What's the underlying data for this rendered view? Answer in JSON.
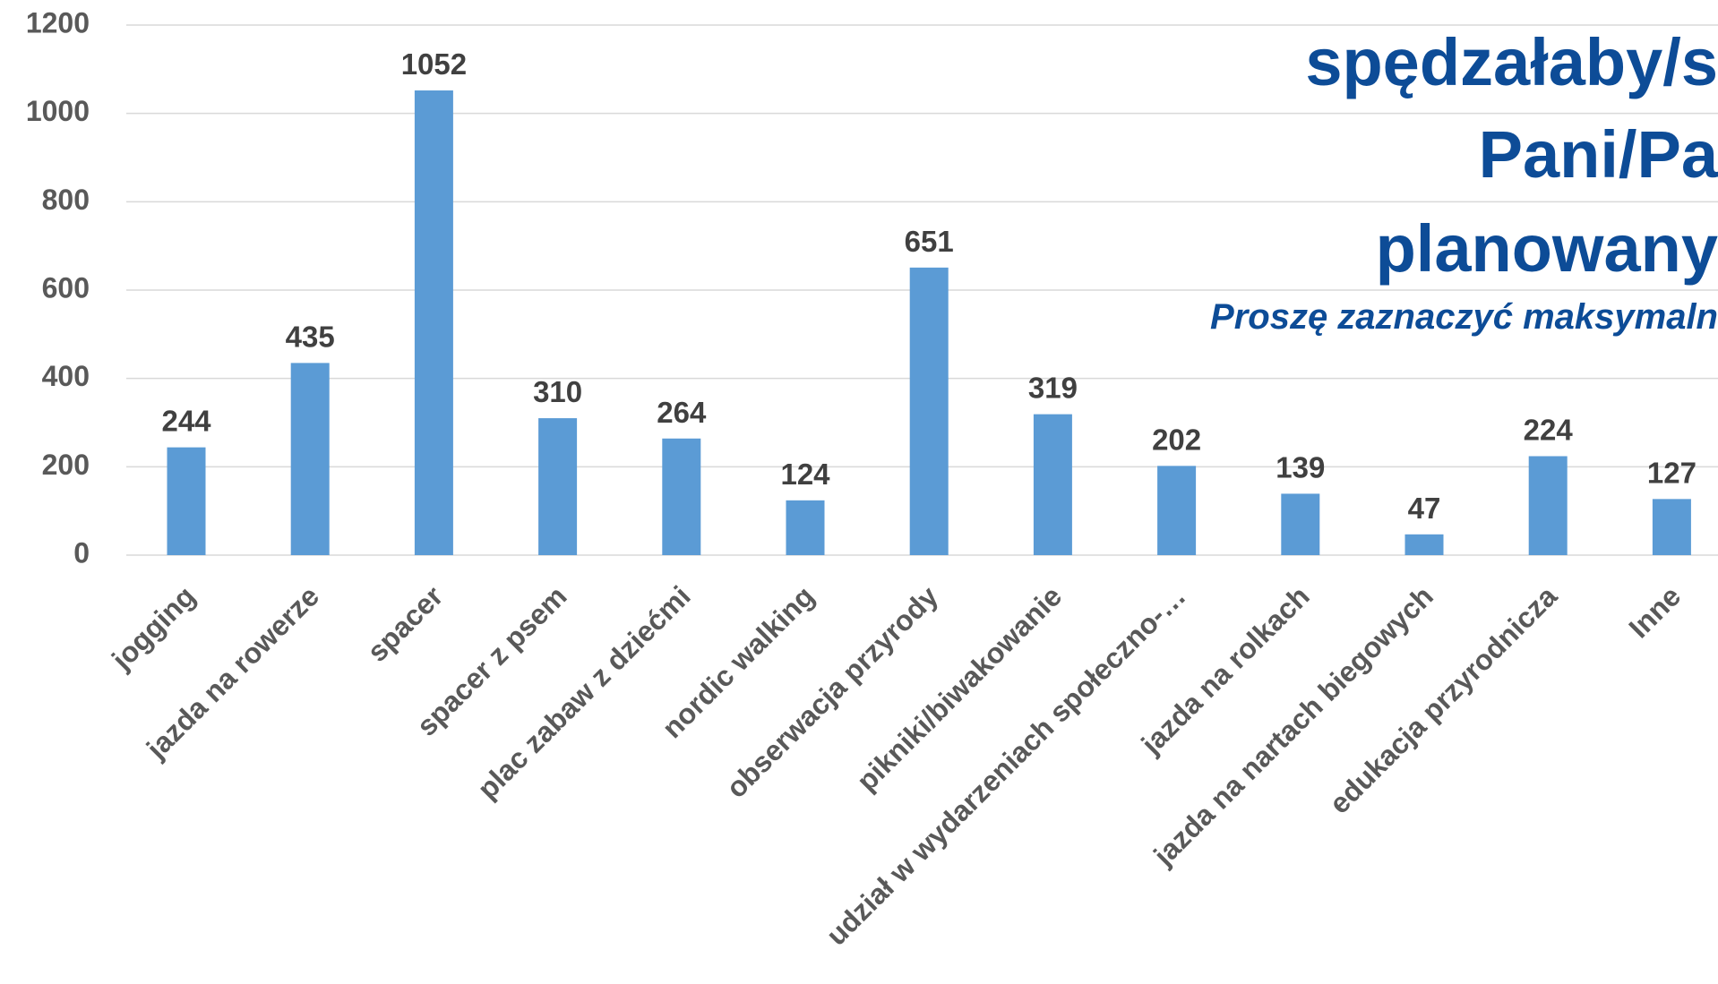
{
  "chart_data": {
    "type": "bar",
    "title_lines": [
      "spędzałaby/s",
      "Pani/Pa",
      "planowany"
    ],
    "subtitle": "Proszę zaznaczyć maksymaln",
    "categories": [
      "jogging",
      "jazda na rowerze",
      "spacer",
      "spacer z psem",
      "plac zabaw z dziećmi",
      "nordic walking",
      "obserwacja przyrody",
      "pikniki/biwakowanie",
      "udział w wydarzeniach społeczno-…",
      "jazda na rolkach",
      "jazda na nartach biegowych",
      "edukacja przyrodnicza",
      "Inne"
    ],
    "values": [
      244,
      435,
      1052,
      310,
      264,
      124,
      651,
      319,
      202,
      139,
      47,
      224,
      127
    ],
    "color": "#5b9bd5",
    "ylim": [
      0,
      1200
    ],
    "yticks": [
      0,
      200,
      400,
      600,
      800,
      1000,
      1200
    ],
    "grid": true
  }
}
